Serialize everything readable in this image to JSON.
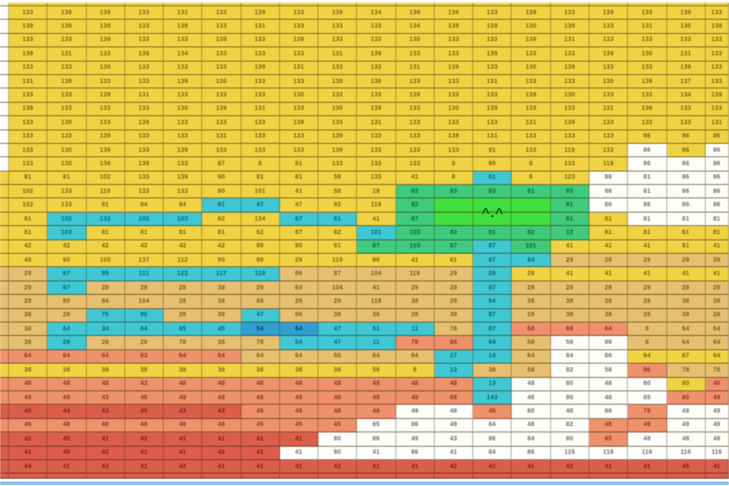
{
  "app": {
    "description": "grid world heatmap with agent face",
    "face": "^.^"
  },
  "palette": {
    "Y": "#f2d23f",
    "T": "#e7bf6e",
    "C": "#3cc8d4",
    "G": "#3dcb7c",
    "L": "#3ce03a",
    "W": "#fdfdfa",
    "S": "#f19069",
    "R": "#e05c4a",
    "B": "#2e9fd4"
  },
  "ink": {
    "Y": "#7c6410",
    "T": "#7e5c1c",
    "C": "#0c6670",
    "G": "#11672f",
    "L": "#0c5a10",
    "W": "#6e6e6e",
    "S": "#8f3522",
    "R": "#7e1f16",
    "B": "#073f5c"
  },
  "lime_block": {
    "col_start": 12,
    "col_end": 14,
    "row_start": 15,
    "row_end": 16,
    "face": "^.^",
    "face_color": "#0c5a10"
  },
  "footer": {
    "bar_color": "#8cc0ea"
  },
  "grid": {
    "rows": [
      {
        "colors": "WYYYYYYYYYYYYYYYYYYY",
        "values": [
          "",
          "",
          "",
          "",
          "",
          "",
          "",
          "",
          "",
          "",
          "",
          "",
          "",
          "",
          "",
          "",
          "",
          "",
          "",
          ""
        ]
      },
      {
        "colors": "WYYYYYYYYYYYYYYYYYYY",
        "values": [
          "",
          "133",
          "139",
          "139",
          "133",
          "131",
          "133",
          "139",
          "133",
          "139",
          "134",
          "139",
          "139",
          "133",
          "139",
          "133",
          "139",
          "133",
          "139",
          "133"
        ]
      },
      {
        "colors": "WYYYYYYYYYYYYYYYYYYY",
        "values": [
          "",
          "139",
          "139",
          "139",
          "133",
          "138",
          "133",
          "131",
          "133",
          "133",
          "133",
          "134",
          "139",
          "139",
          "130",
          "139",
          "133",
          "131",
          "130",
          "138"
        ]
      },
      {
        "colors": "WYYYYYYYYYYYYYYYYYYY",
        "values": [
          "",
          "133",
          "133",
          "139",
          "133",
          "133",
          "139",
          "133",
          "139",
          "133",
          "133",
          "130",
          "133",
          "133",
          "139",
          "131",
          "133",
          "133",
          "133",
          "133"
        ]
      },
      {
        "colors": "WYYYYYYYYYYYYYYYYYYY",
        "values": [
          "",
          "139",
          "131",
          "133",
          "139",
          "134",
          "133",
          "133",
          "133",
          "131",
          "139",
          "133",
          "133",
          "139",
          "133",
          "133",
          "139",
          "130",
          "131",
          "133"
        ]
      },
      {
        "colors": "WYYYYYYYYYYYYYYYYYYY",
        "values": [
          "",
          "133",
          "133",
          "130",
          "133",
          "133",
          "133",
          "139",
          "131",
          "133",
          "133",
          "131",
          "139",
          "133",
          "130",
          "139",
          "133",
          "133",
          "139",
          "133"
        ]
      },
      {
        "colors": "WYYYYYYYYYYYYYYYYYYY",
        "values": [
          "",
          "131",
          "139",
          "133",
          "133",
          "139",
          "130",
          "133",
          "133",
          "139",
          "130",
          "133",
          "133",
          "131",
          "133",
          "133",
          "130",
          "139",
          "137",
          "133"
        ]
      },
      {
        "colors": "WYYYYYYYYYYYYYYYYYYY",
        "values": [
          "",
          "133",
          "133",
          "139",
          "131",
          "133",
          "133",
          "133",
          "130",
          "133",
          "133",
          "139",
          "133",
          "133",
          "139",
          "130",
          "133",
          "133",
          "134",
          "139"
        ]
      },
      {
        "colors": "WYYYYYYYYYYYYYYYYYYY",
        "values": [
          "",
          "139",
          "133",
          "133",
          "133",
          "130",
          "139",
          "131",
          "133",
          "130",
          "139",
          "133",
          "130",
          "139",
          "133",
          "133",
          "131",
          "139",
          "133",
          "133"
        ]
      },
      {
        "colors": "WYYYYYYYYYYYYYYYYYYY",
        "values": [
          "",
          "133",
          "130",
          "133",
          "139",
          "133",
          "133",
          "133",
          "139",
          "133",
          "131",
          "133",
          "133",
          "133",
          "131",
          "139",
          "133",
          "133",
          "133",
          "131"
        ]
      },
      {
        "colors": "WYYYYYYYYYYYYYYYYYYY",
        "values": [
          "",
          "133",
          "133",
          "139",
          "133",
          "133",
          "131",
          "133",
          "133",
          "139",
          "133",
          "133",
          "139",
          "131",
          "133",
          "133",
          "133",
          "86",
          "86",
          "86"
        ]
      },
      {
        "colors": "WYYYYYYYYYYYYYYYYWYW",
        "values": [
          "",
          "133",
          "130",
          "136",
          "133",
          "139",
          "133",
          "133",
          "133",
          "139",
          "133",
          "133",
          "133",
          "91",
          "133",
          "119",
          "133",
          "86",
          "86",
          "86"
        ]
      },
      {
        "colors": "WYYYYYYYYYYYYYYYYWWW",
        "values": [
          "",
          "133",
          "130",
          "136",
          "139",
          "133",
          "87",
          "8",
          "81",
          "133",
          "133",
          "133",
          "8",
          "90",
          "8",
          "133",
          "119",
          "86",
          "86",
          "86"
        ]
      },
      {
        "colors": "YYYYYYYYYYYYYCYYWWWW",
        "values": [
          "",
          "81",
          "81",
          "102",
          "133",
          "139",
          "90",
          "81",
          "81",
          "58",
          "133",
          "41",
          "8",
          "61",
          "8",
          "123",
          "86",
          "81",
          "86",
          "86"
        ]
      },
      {
        "colors": "YYYYYYYYYYYGGGGGWWWW",
        "values": [
          "",
          "102",
          "133",
          "110",
          "133",
          "133",
          "90",
          "101",
          "41",
          "58",
          "18",
          "83",
          "83",
          "83",
          "61",
          "83",
          "86",
          "81",
          "86",
          "86"
        ]
      },
      {
        "colors": "YYYYYYCCYYYGLLLGWWWW",
        "values": [
          "",
          "102",
          "133",
          "81",
          "84",
          "84",
          "81",
          "47",
          "47",
          "92",
          "118",
          "82",
          "",
          "",
          "",
          "81",
          "86",
          "86",
          "86",
          "86"
        ]
      },
      {
        "colors": "YYCCCCYYCCYGLLLGYWWW",
        "values": [
          "",
          "81",
          "102",
          "132",
          "102",
          "103",
          "82",
          "134",
          "67",
          "61",
          "41",
          "87",
          "",
          "",
          "",
          "81",
          "81",
          "81",
          "81",
          "81"
        ]
      },
      {
        "colors": "YYCYYYYYYYCGGGGGYYYY",
        "values": [
          "",
          "81",
          "103",
          "81",
          "81",
          "81",
          "81",
          "62",
          "87",
          "82",
          "101",
          "103",
          "83",
          "81",
          "82",
          "12",
          "81",
          "81",
          "81",
          "81"
        ]
      },
      {
        "colors": "YYYYYYYYYYGGGCGYYYYY",
        "values": [
          "",
          "42",
          "42",
          "42",
          "42",
          "42",
          "42",
          "90",
          "90",
          "81",
          "87",
          "103",
          "87",
          "87",
          "101",
          "41",
          "41",
          "41",
          "81",
          "41"
        ]
      },
      {
        "colors": "YYYYYYYYYYYYYCCTTTTT",
        "values": [
          "",
          "40",
          "90",
          "100",
          "137",
          "112",
          "90",
          "90",
          "29",
          "119",
          "86",
          "41",
          "61",
          "87",
          "94",
          "29",
          "28",
          "29",
          "29",
          "29"
        ]
      },
      {
        "colors": "TTCCCCCCTTTTTCYYYYYY",
        "values": [
          "",
          "29",
          "87",
          "89",
          "111",
          "122",
          "117",
          "118",
          "86",
          "87",
          "104",
          "118",
          "29",
          "29",
          "28",
          "41",
          "41",
          "41",
          "41",
          "41"
        ]
      },
      {
        "colors": "TTCTTTTTTTTTTCTTTTTT",
        "values": [
          "",
          "29",
          "87",
          "28",
          "28",
          "28",
          "38",
          "29",
          "84",
          "104",
          "41",
          "29",
          "28",
          "87",
          "29",
          "29",
          "29",
          "29",
          "28",
          "29"
        ]
      },
      {
        "colors": "TTTTTTTTTTTTTCTTTTTT",
        "values": [
          "",
          "28",
          "80",
          "84",
          "104",
          "28",
          "38",
          "88",
          "29",
          "29",
          "118",
          "38",
          "29",
          "94",
          "38",
          "38",
          "38",
          "28",
          "38",
          "38"
        ]
      },
      {
        "colors": "TTTCCTTCTTTTTCTTTTTT",
        "values": [
          "",
          "38",
          "28",
          "76",
          "96",
          "28",
          "38",
          "47",
          "86",
          "38",
          "38",
          "28",
          "38",
          "87",
          "28",
          "38",
          "38",
          "28",
          "38",
          "28"
        ]
      },
      {
        "colors": "TTCCCCCBBCCCTCSSSTTT",
        "values": [
          "",
          "38",
          "64",
          "34",
          "64",
          "65",
          "45",
          "54",
          "64",
          "47",
          "51",
          "11",
          "78",
          "87",
          "68",
          "68",
          "64",
          "8",
          "64",
          "64"
        ]
      },
      {
        "colors": "TTCTTTTTCCCSSCTWWTTT",
        "values": [
          "",
          "38",
          "28",
          "28",
          "28",
          "78",
          "38",
          "78",
          "54",
          "47",
          "11",
          "78",
          "88",
          "94",
          "58",
          "58",
          "86",
          "8",
          "64",
          "64"
        ]
      },
      {
        "colors": "SSSSSSSTTTTTCCTWWYYY",
        "values": [
          "",
          "64",
          "64",
          "64",
          "63",
          "64",
          "64",
          "64",
          "64",
          "58",
          "64",
          "64",
          "27",
          "14",
          "64",
          "84",
          "86",
          "64",
          "67",
          "64"
        ]
      },
      {
        "colors": "YYYYYYYYYYYYCTTWWSTT",
        "values": [
          "",
          "38",
          "38",
          "38",
          "38",
          "38",
          "38",
          "38",
          "38",
          "38",
          "58",
          "8",
          "13",
          "38",
          "58",
          "82",
          "58",
          "86",
          "78",
          "78"
        ]
      },
      {
        "colors": "SSSSSSSSSSSSSCWWWWYS",
        "values": [
          "",
          "48",
          "48",
          "48",
          "43",
          "48",
          "48",
          "48",
          "48",
          "48",
          "49",
          "48",
          "48",
          "13",
          "48",
          "80",
          "48",
          "80",
          "80",
          "48"
        ]
      },
      {
        "colors": "SSSSSSSSSSSSSCWWWWSS",
        "values": [
          "",
          "48",
          "48",
          "43",
          "48",
          "48",
          "48",
          "48",
          "48",
          "48",
          "48",
          "48",
          "68",
          "143",
          "48",
          "80",
          "48",
          "85",
          "80",
          "48"
        ]
      },
      {
        "colors": "RRRRRRRSSSSWWSWWWSWW",
        "values": [
          "",
          "40",
          "44",
          "43",
          "45",
          "43",
          "43",
          "48",
          "48",
          "48",
          "49",
          "49",
          "48",
          "48",
          "80",
          "48",
          "86",
          "78",
          "49",
          "49"
        ]
      },
      {
        "colors": "SSSSSSSSSSWWWWWWSSWW",
        "values": [
          "",
          "48",
          "48",
          "48",
          "48",
          "48",
          "48",
          "45",
          "45",
          "45",
          "85",
          "86",
          "49",
          "84",
          "48",
          "82",
          "48",
          "49",
          "49",
          "49"
        ]
      },
      {
        "colors": "RRRRRRRRRWWWWWWWSWWW",
        "values": [
          "",
          "42",
          "45",
          "41",
          "42",
          "41",
          "41",
          "41",
          "41",
          "80",
          "86",
          "49",
          "43",
          "86",
          "84",
          "80",
          "85",
          "48",
          "48",
          "48"
        ]
      },
      {
        "colors": "RRRRRRRRWWWWWWWWWWWW",
        "values": [
          "",
          "41",
          "45",
          "42",
          "41",
          "41",
          "42",
          "41",
          "41",
          "80",
          "41",
          "86",
          "41",
          "84",
          "86",
          "116",
          "118",
          "116",
          "116",
          "116"
        ]
      },
      {
        "colors": "RRRRRRRRRRRRRRRRRRRR",
        "values": [
          "",
          "44",
          "41",
          "43",
          "41",
          "42",
          "41",
          "41",
          "41",
          "42",
          "41",
          "41",
          "42",
          "41",
          "41",
          "42",
          "41",
          "41",
          "45",
          "41"
        ]
      },
      {
        "colors": "RRRRRRRRRRRRRRRRRRRR",
        "values": [
          "",
          "",
          "",
          "",
          "",
          "",
          "",
          "",
          "",
          "",
          "",
          "",
          "",
          "",
          "",
          "",
          "",
          "",
          "",
          ""
        ]
      }
    ]
  }
}
